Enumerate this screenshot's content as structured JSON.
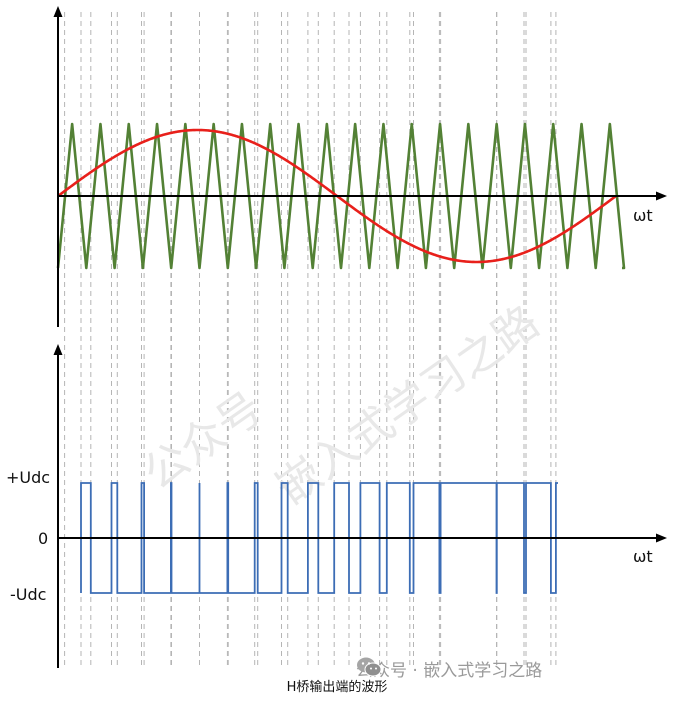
{
  "top_plot": {
    "x_axis_label": "ωt",
    "series": [
      {
        "role": "carrier",
        "color": "#538135",
        "shape": "triangle",
        "periods": 20
      },
      {
        "role": "modulation",
        "color": "#e8201b",
        "shape": "sine",
        "periods": 1
      }
    ]
  },
  "bottom_plot": {
    "x_axis_label": "ωt",
    "y_tick_labels": {
      "positive": "+Udc",
      "zero": "0",
      "negative": "-Udc"
    },
    "output_color": "#3c6db5"
  },
  "watermark": {
    "line1": "公众号",
    "line2": "嵌入式学习之路"
  },
  "account": {
    "icon": "wechat-icon",
    "text": "公众号 · 嵌入式学习之路"
  },
  "caption": "H桥输出端的波形",
  "colors": {
    "axis": "#000000",
    "grid_dash": "#b5b5b5",
    "carrier": "#538135",
    "modulation": "#e8201b",
    "output": "#3c6db5"
  }
}
